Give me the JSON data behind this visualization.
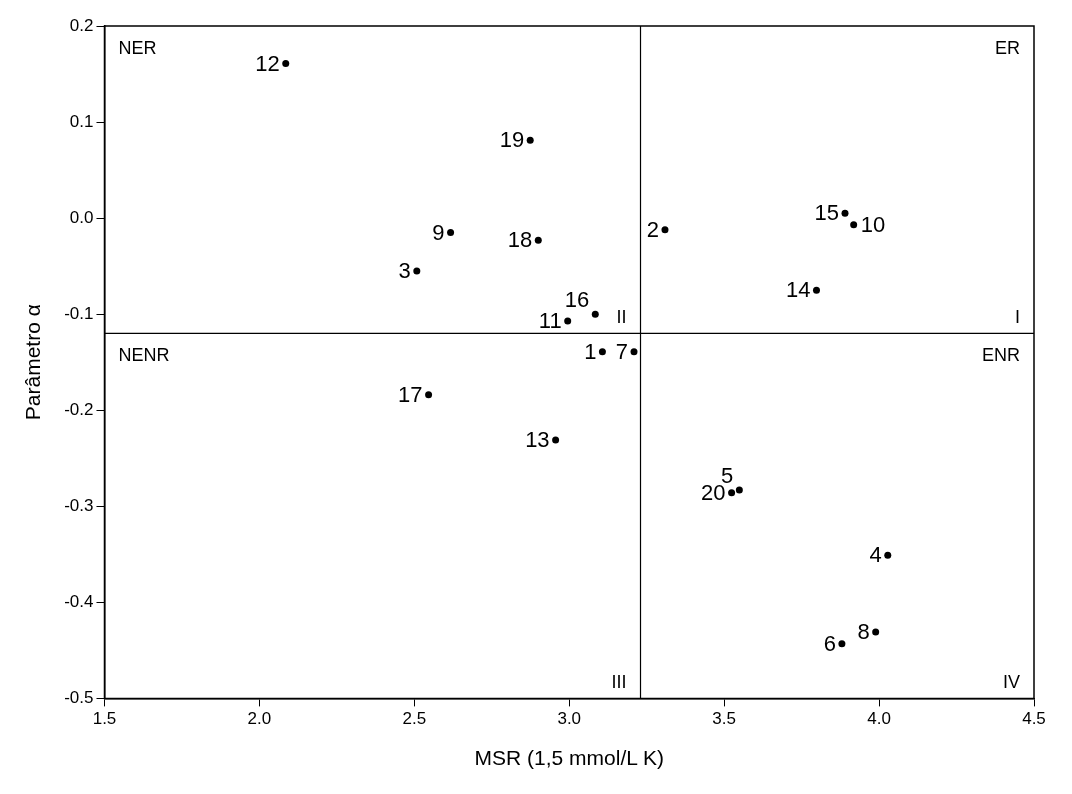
{
  "chart_data": {
    "type": "scatter",
    "xlabel": "MSR (1,5 mmol/L K)",
    "ylabel": "Parâmetro α",
    "series": [
      {
        "name": "1",
        "color": "#000000",
        "x": [
          3.107
        ],
        "values": [
          -0.139
        ]
      },
      {
        "name": "2",
        "color": "#000000",
        "x": [
          3.309
        ],
        "values": [
          -0.012
        ]
      },
      {
        "name": "3",
        "color": "#000000",
        "x": [
          2.508
        ],
        "values": [
          -0.055
        ]
      },
      {
        "name": "4",
        "color": "#000000",
        "x": [
          4.028
        ],
        "values": [
          -0.351
        ]
      },
      {
        "name": "5",
        "color": "#000000",
        "x": [
          3.549
        ],
        "values": [
          -0.283
        ]
      },
      {
        "name": "6",
        "color": "#000000",
        "x": [
          3.88
        ],
        "values": [
          -0.443
        ]
      },
      {
        "name": "7",
        "color": "#000000",
        "x": [
          3.209
        ],
        "values": [
          -0.139
        ]
      },
      {
        "name": "8",
        "color": "#000000",
        "x": [
          3.989
        ],
        "values": [
          -0.431
        ]
      },
      {
        "name": "9",
        "color": "#000000",
        "x": [
          2.617
        ],
        "values": [
          -0.015
        ]
      },
      {
        "name": "10",
        "color": "#000000",
        "x": [
          3.918
        ],
        "values": [
          -0.007
        ]
      },
      {
        "name": "11",
        "color": "#000000",
        "x": [
          2.995
        ],
        "values": [
          -0.107
        ]
      },
      {
        "name": "12",
        "color": "#000000",
        "x": [
          2.085
        ],
        "values": [
          0.161
        ]
      },
      {
        "name": "13",
        "color": "#000000",
        "x": [
          2.956
        ],
        "values": [
          -0.231
        ]
      },
      {
        "name": "14",
        "color": "#000000",
        "x": [
          3.798
        ],
        "values": [
          -0.075
        ]
      },
      {
        "name": "15",
        "color": "#000000",
        "x": [
          3.89
        ],
        "values": [
          0.005
        ]
      },
      {
        "name": "16",
        "color": "#000000",
        "x": [
          3.084
        ],
        "values": [
          -0.1
        ]
      },
      {
        "name": "17",
        "color": "#000000",
        "x": [
          2.546
        ],
        "values": [
          -0.184
        ]
      },
      {
        "name": "18",
        "color": "#000000",
        "x": [
          2.9
        ],
        "values": [
          -0.023
        ]
      },
      {
        "name": "19",
        "color": "#000000",
        "x": [
          2.874
        ],
        "values": [
          0.081
        ]
      },
      {
        "name": "20",
        "color": "#000000",
        "x": [
          3.524
        ],
        "values": [
          -0.286
        ]
      }
    ],
    "marker": "circle",
    "xlim": [
      1.5,
      4.5
    ],
    "xticks": [
      {
        "value": 1.5,
        "label": "1.5"
      },
      {
        "value": 2,
        "label": "2.0"
      },
      {
        "value": 2.5,
        "label": "2.5"
      },
      {
        "value": 3,
        "label": "3.0"
      },
      {
        "value": 3.5,
        "label": "3.5"
      },
      {
        "value": 4,
        "label": "4.0"
      },
      {
        "value": 4.5,
        "label": "4.5"
      }
    ],
    "ylim": [
      -0.5,
      0.2
    ],
    "yticks": [
      {
        "value": -0.5,
        "label": "-0.5"
      },
      {
        "value": -0.4,
        "label": "-0.4"
      },
      {
        "value": -0.3,
        "label": "-0.3"
      },
      {
        "value": -0.2,
        "label": "-0.2"
      },
      {
        "value": -0.1,
        "label": "-0.1"
      },
      {
        "value": 0,
        "label": "0.0"
      },
      {
        "value": 0.1,
        "label": "0.1"
      },
      {
        "value": 0.2,
        "label": "0.2"
      }
    ],
    "ref_lines": [
      {
        "axis": "x",
        "value": 3.23,
        "color": "#000000"
      },
      {
        "axis": "y",
        "value": -0.12,
        "color": "#000000"
      }
    ],
    "annotations": [
      "NER",
      "ER",
      "NENR",
      "ENR",
      "II",
      "I",
      "III",
      "IV"
    ],
    "grid": false,
    "legend": false
  }
}
